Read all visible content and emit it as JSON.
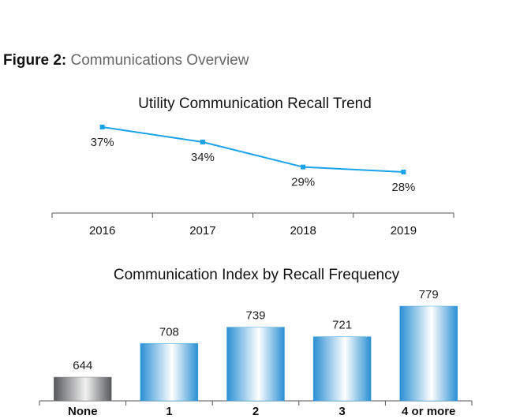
{
  "figure": {
    "label": "Figure 2:",
    "subtitle": "Communications Overview"
  },
  "chart_data": [
    {
      "type": "line",
      "title": "Utility Communication Recall Trend",
      "categories": [
        "2016",
        "2017",
        "2018",
        "2019"
      ],
      "values": [
        37,
        34,
        29,
        28
      ],
      "value_labels": [
        "37%",
        "34%",
        "29%",
        "28%"
      ],
      "unit": "%",
      "color": "#1aa3e8",
      "grid": false
    },
    {
      "type": "bar",
      "title": "Communication Index by Recall Frequency",
      "categories": [
        "None",
        "1",
        "2",
        "3",
        "4 or more"
      ],
      "values": [
        644,
        708,
        739,
        721,
        779
      ],
      "value_labels": [
        "644",
        "708",
        "739",
        "721",
        "779"
      ],
      "colors": {
        "None": "#7d7f82",
        "default": "#3aa0de"
      },
      "grid": false
    }
  ]
}
